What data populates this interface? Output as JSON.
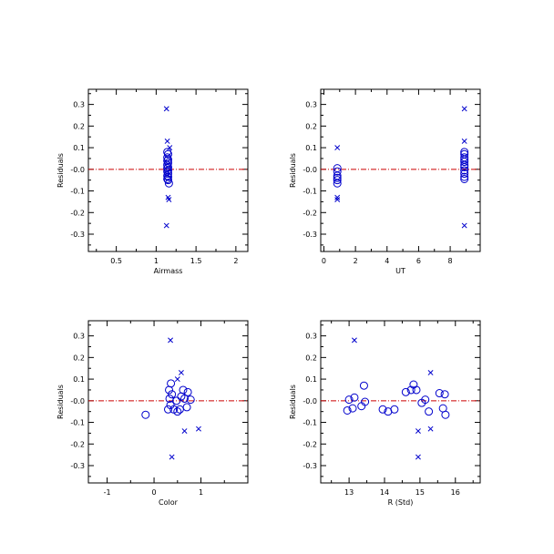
{
  "chart_data": [
    {
      "type": "scatter",
      "xlabel": "Airmass",
      "ylabel": "Residuals",
      "xlim": [
        0.15,
        2.15
      ],
      "ylim": [
        -0.38,
        0.37
      ],
      "xticks": [
        0.5,
        1.0,
        1.5,
        2.0
      ],
      "xtick_labels": [
        "0.5",
        "1",
        "1.5",
        "2"
      ],
      "yticks": [
        -0.3,
        -0.2,
        -0.1,
        0.0,
        0.1,
        0.2,
        0.3
      ],
      "ytick_labels": [
        "-0.3",
        "-0.2",
        "-0.1",
        "-0.0",
        "0.1",
        "0.2",
        "0.3"
      ],
      "zero_line": {
        "y": 0.0,
        "color": "#cc0000",
        "style": "dash-dot"
      },
      "series": [
        {
          "marker": "circle",
          "color": "#0000cc",
          "points": [
            [
              1.14,
              0.08
            ],
            [
              1.15,
              0.07
            ],
            [
              1.14,
              0.055
            ],
            [
              1.15,
              0.045
            ],
            [
              1.14,
              0.04
            ],
            [
              1.15,
              0.03
            ],
            [
              1.14,
              0.02
            ],
            [
              1.15,
              0.01
            ],
            [
              1.14,
              0.005
            ],
            [
              1.15,
              -0.005
            ],
            [
              1.14,
              -0.01
            ],
            [
              1.15,
              -0.02
            ],
            [
              1.14,
              -0.03
            ],
            [
              1.15,
              -0.035
            ],
            [
              1.14,
              -0.045
            ],
            [
              1.15,
              -0.05
            ],
            [
              1.16,
              -0.065
            ]
          ]
        },
        {
          "marker": "x",
          "color": "#0000cc",
          "points": [
            [
              1.13,
              0.28
            ],
            [
              1.14,
              0.13
            ],
            [
              1.17,
              0.1
            ],
            [
              1.15,
              -0.13
            ],
            [
              1.16,
              -0.14
            ],
            [
              1.13,
              -0.26
            ]
          ]
        }
      ]
    },
    {
      "type": "scatter",
      "xlabel": "UT",
      "ylabel": "Residuals",
      "xlim": [
        -0.2,
        9.9
      ],
      "ylim": [
        -0.38,
        0.37
      ],
      "xticks": [
        0,
        2,
        4,
        6,
        8
      ],
      "xtick_labels": [
        "0",
        "2",
        "4",
        "6",
        "8"
      ],
      "yticks": [
        -0.3,
        -0.2,
        -0.1,
        0.0,
        0.1,
        0.2,
        0.3
      ],
      "ytick_labels": [
        "-0.3",
        "-0.2",
        "-0.1",
        "-0.0",
        "0.1",
        "0.2",
        "0.3"
      ],
      "zero_line": {
        "y": 0.0,
        "color": "#cc0000",
        "style": "dash-dot"
      },
      "series": [
        {
          "marker": "circle",
          "color": "#0000cc",
          "points": [
            [
              0.85,
              0.005
            ],
            [
              0.85,
              -0.01
            ],
            [
              0.85,
              -0.03
            ],
            [
              0.85,
              -0.04
            ],
            [
              0.85,
              -0.05
            ],
            [
              0.85,
              -0.065
            ],
            [
              8.9,
              0.08
            ],
            [
              8.9,
              0.07
            ],
            [
              8.9,
              0.055
            ],
            [
              8.9,
              0.045
            ],
            [
              8.9,
              0.035
            ],
            [
              8.9,
              0.02
            ],
            [
              8.9,
              0.01
            ],
            [
              8.9,
              -0.005
            ],
            [
              8.9,
              -0.02
            ],
            [
              8.9,
              -0.035
            ],
            [
              8.9,
              -0.045
            ]
          ]
        },
        {
          "marker": "x",
          "color": "#0000cc",
          "points": [
            [
              0.85,
              0.1
            ],
            [
              0.85,
              -0.13
            ],
            [
              0.85,
              -0.14
            ],
            [
              8.9,
              0.28
            ],
            [
              8.9,
              0.13
            ],
            [
              8.9,
              -0.26
            ]
          ]
        }
      ]
    },
    {
      "type": "scatter",
      "xlabel": "Color",
      "ylabel": "Residuals",
      "xlim": [
        -1.4,
        2.0
      ],
      "ylim": [
        -0.38,
        0.37
      ],
      "xticks": [
        -1,
        0,
        1
      ],
      "xtick_labels": [
        "-1",
        "0",
        "1"
      ],
      "yticks": [
        -0.3,
        -0.2,
        -0.1,
        0.0,
        0.1,
        0.2,
        0.3
      ],
      "ytick_labels": [
        "-0.3",
        "-0.2",
        "-0.1",
        "-0.0",
        "0.1",
        "0.2",
        "0.3"
      ],
      "zero_line": {
        "y": 0.0,
        "color": "#cc0000",
        "style": "dash-dot"
      },
      "series": [
        {
          "marker": "circle",
          "color": "#0000cc",
          "points": [
            [
              -0.18,
              -0.065
            ],
            [
              0.3,
              -0.04
            ],
            [
              0.33,
              0.01
            ],
            [
              0.36,
              0.08
            ],
            [
              0.32,
              0.05
            ],
            [
              0.38,
              0.03
            ],
            [
              0.35,
              -0.02
            ],
            [
              0.42,
              -0.04
            ],
            [
              0.48,
              0.0
            ],
            [
              0.5,
              -0.05
            ],
            [
              0.55,
              -0.04
            ],
            [
              0.58,
              0.02
            ],
            [
              0.62,
              0.05
            ],
            [
              0.65,
              0.01
            ],
            [
              0.72,
              0.04
            ],
            [
              0.7,
              -0.03
            ],
            [
              0.78,
              0.005
            ]
          ]
        },
        {
          "marker": "x",
          "color": "#0000cc",
          "points": [
            [
              0.35,
              0.28
            ],
            [
              0.58,
              0.13
            ],
            [
              0.5,
              0.1
            ],
            [
              0.65,
              -0.14
            ],
            [
              0.95,
              -0.13
            ],
            [
              0.38,
              -0.26
            ]
          ]
        }
      ]
    },
    {
      "type": "scatter",
      "xlabel": "R (Std)",
      "ylabel": "Residuals",
      "xlim": [
        12.2,
        16.7
      ],
      "ylim": [
        -0.38,
        0.37
      ],
      "xticks": [
        13,
        14,
        15,
        16
      ],
      "xtick_labels": [
        "13",
        "14",
        "15",
        "16"
      ],
      "yticks": [
        -0.3,
        -0.2,
        -0.1,
        0.0,
        0.1,
        0.2,
        0.3
      ],
      "ytick_labels": [
        "-0.3",
        "-0.2",
        "-0.1",
        "-0.0",
        "0.1",
        "0.2",
        "0.3"
      ],
      "zero_line": {
        "y": 0.0,
        "color": "#cc0000",
        "style": "dash-dot"
      },
      "series": [
        {
          "marker": "circle",
          "color": "#0000cc",
          "points": [
            [
              12.95,
              -0.045
            ],
            [
              13.0,
              0.005
            ],
            [
              13.15,
              0.015
            ],
            [
              13.1,
              -0.035
            ],
            [
              13.35,
              -0.025
            ],
            [
              13.42,
              0.07
            ],
            [
              13.45,
              -0.005
            ],
            [
              13.95,
              -0.04
            ],
            [
              14.1,
              -0.05
            ],
            [
              14.28,
              -0.04
            ],
            [
              14.6,
              0.04
            ],
            [
              14.82,
              0.075
            ],
            [
              14.75,
              0.05
            ],
            [
              14.9,
              0.05
            ],
            [
              15.05,
              -0.01
            ],
            [
              15.15,
              0.005
            ],
            [
              15.25,
              -0.05
            ],
            [
              15.55,
              0.035
            ],
            [
              15.7,
              0.03
            ],
            [
              15.65,
              -0.035
            ],
            [
              15.72,
              -0.065
            ]
          ]
        },
        {
          "marker": "x",
          "color": "#0000cc",
          "points": [
            [
              13.15,
              0.28
            ],
            [
              15.3,
              0.13
            ],
            [
              14.95,
              -0.14
            ],
            [
              15.3,
              -0.13
            ],
            [
              14.95,
              -0.26
            ]
          ]
        }
      ]
    }
  ]
}
